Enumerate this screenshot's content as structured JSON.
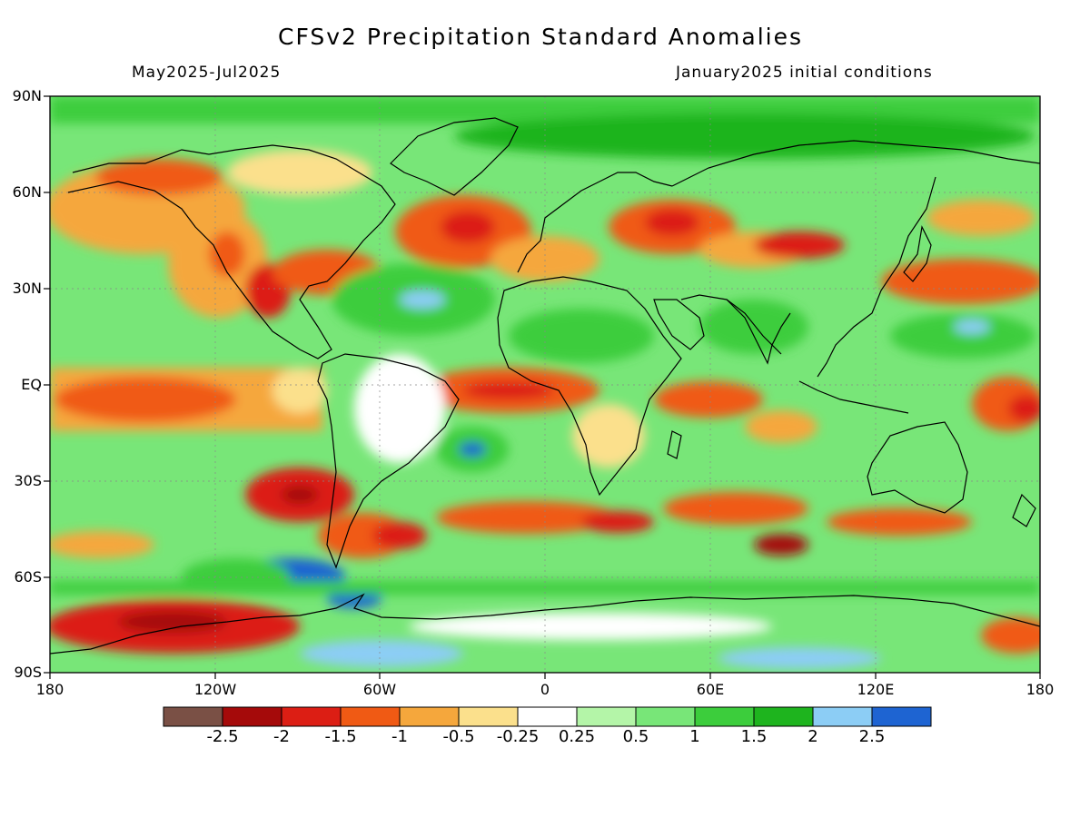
{
  "title": "CFSv2 Precipitation Standard Anomalies",
  "subtitle_left": "May2025-Jul2025",
  "subtitle_right": "January2025 initial conditions",
  "lat_ticks": [
    "90N",
    "60N",
    "30N",
    "EQ",
    "30S",
    "60S",
    "90S"
  ],
  "lon_ticks": [
    "180",
    "120W",
    "60W",
    "0",
    "60E",
    "120E",
    "180"
  ],
  "legend": {
    "labels": [
      "-2.5",
      "-2",
      "-1.5",
      "-1",
      "-0.5",
      "-0.25",
      "0.25",
      "0.5",
      "1",
      "1.5",
      "2",
      "2.5"
    ],
    "colors": [
      "#7a5045",
      "#a50a0a",
      "#dc1e14",
      "#f05a14",
      "#f5a73c",
      "#fbe08c",
      "#ffffff",
      "#b4f5a8",
      "#78e678",
      "#3ccd3c",
      "#1eb41e",
      "#8ccdf5",
      "#1e64d2"
    ]
  },
  "anomaly_palette": {
    "dry_extreme": "#7a5045",
    "dry_strong": "#dc1e14",
    "dry_moderate": "#f05a14",
    "dry_weak": "#f5a73c",
    "neutral": "#ffffff",
    "wet_weak": "#b4f5a8",
    "wet_moderate": "#78e678",
    "wet_strong": "#1eb41e",
    "wet_extreme": "#1e64d2"
  }
}
